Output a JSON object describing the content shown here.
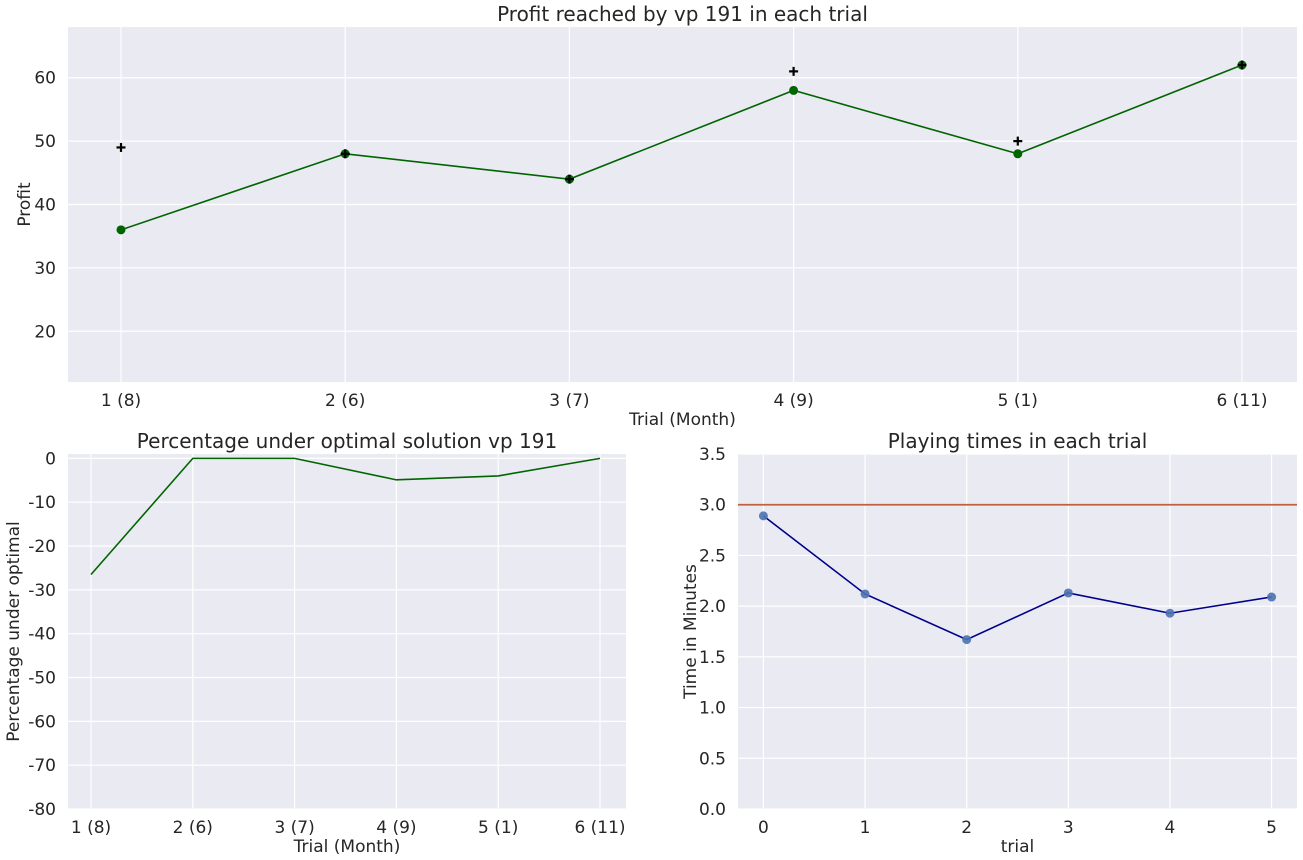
{
  "chart_data": [
    {
      "type": "line",
      "title": "Profit reached by vp 191 in each trial",
      "xlabel": "Trial (Month)",
      "ylabel": "Profit",
      "categories": [
        "1 (8)",
        "2 (6)",
        "3 (7)",
        "4 (9)",
        "5 (1)",
        "6 (11)"
      ],
      "ylim": [
        12,
        68
      ],
      "yticks": [
        20,
        30,
        40,
        50,
        60
      ],
      "grid": true,
      "series": [
        {
          "marker": "circle",
          "color": "#006400",
          "values": [
            36,
            48,
            44,
            58,
            48,
            62
          ]
        },
        {
          "marker": "plus",
          "color": "#000000",
          "values": [
            49,
            48,
            44,
            61,
            50,
            62
          ]
        }
      ]
    },
    {
      "type": "line",
      "title": "Percentage under optimal solution vp 191",
      "xlabel": "Trial (Month)",
      "ylabel": "Percentage under optimal",
      "categories": [
        "1 (8)",
        "2 (6)",
        "3 (7)",
        "4 (9)",
        "5 (1)",
        "6 (11)"
      ],
      "ylim": [
        -80,
        1
      ],
      "yticks": [
        0,
        -10,
        -20,
        -30,
        -40,
        -50,
        -60,
        -70,
        -80
      ],
      "grid": true,
      "series": [
        {
          "color": "#006400",
          "values": [
            -26.5,
            0,
            0,
            -4.9,
            -4,
            0
          ]
        }
      ]
    },
    {
      "type": "line",
      "title": "Playing times in each trial",
      "xlabel": "trial",
      "ylabel": "Time in Minutes",
      "x": [
        0,
        1,
        2,
        3,
        4,
        5
      ],
      "xticks": [
        "0",
        "1",
        "2",
        "3",
        "4",
        "5"
      ],
      "xlim": [
        -0.25,
        5.25
      ],
      "ylim": [
        0,
        3.5
      ],
      "yticks": [
        "0.0",
        "0.5",
        "1.0",
        "1.5",
        "2.0",
        "2.5",
        "3.0",
        "3.5"
      ],
      "grid": true,
      "reference_line": {
        "y": 3.0,
        "color": "#c0603c"
      },
      "series": [
        {
          "color": "#00008b",
          "marker_color": "#4c72b0",
          "values": [
            2.89,
            2.12,
            1.67,
            2.13,
            1.93,
            2.09
          ]
        }
      ]
    }
  ]
}
